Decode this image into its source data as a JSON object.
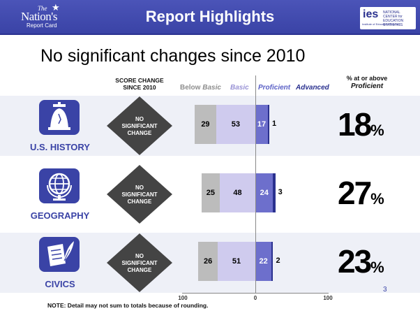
{
  "header": {
    "title": "Report Highlights",
    "nrc_logo": {
      "the": "The",
      "nations": "Nation's",
      "report_card": "Report Card"
    },
    "ies_logo": {
      "ies": "ies",
      "nces": "NATIONAL CENTER for EDUCATION STATISTICS",
      "sub": "Institute of Education Sciences"
    }
  },
  "headline": "No significant changes since 2010",
  "columns": {
    "score_change": "SCORE CHANGE SINCE 2010",
    "pct_line1": "% at or above",
    "pct_line2": "Proficient",
    "below_basic_prefix": "Below ",
    "below_basic_em": "Basic",
    "basic": "Basic",
    "proficient": "Proficient",
    "advanced": "Advanced"
  },
  "chart_data": {
    "type": "bar",
    "orientation": "horizontal-stacked-diverging",
    "categories": [
      "U.S. HISTORY",
      "GEOGRAPHY",
      "CIVICS"
    ],
    "series": [
      {
        "name": "Below Basic",
        "values": [
          29,
          25,
          26
        ],
        "side": "left"
      },
      {
        "name": "Basic",
        "values": [
          53,
          48,
          51
        ],
        "side": "left"
      },
      {
        "name": "Proficient",
        "values": [
          17,
          24,
          22
        ],
        "side": "right"
      },
      {
        "name": "Advanced",
        "values": [
          1,
          3,
          2
        ],
        "side": "right"
      }
    ],
    "at_or_above_proficient": [
      18,
      27,
      23
    ],
    "score_change": [
      "NO SIGNIFICANT CHANGE",
      "NO SIGNIFICANT CHANGE",
      "NO SIGNIFICANT CHANGE"
    ],
    "x_ticks": [
      "100",
      "0",
      "100"
    ],
    "xlim": [
      -100,
      100
    ],
    "colors": {
      "below": "#bcbcbc",
      "basic": "#cfcbee",
      "proficient": "#6d6fcc",
      "advanced": "#2a318f"
    }
  },
  "subjects": [
    {
      "label": "U.S. HISTORY",
      "icon": "liberty-bell-icon"
    },
    {
      "label": "GEOGRAPHY",
      "icon": "globe-icon"
    },
    {
      "label": "CIVICS",
      "icon": "document-quill-icon"
    }
  ],
  "pct_sign": "%",
  "note": "NOTE:  Detail may not sum to totals because of rounding.",
  "slide_number": "3"
}
